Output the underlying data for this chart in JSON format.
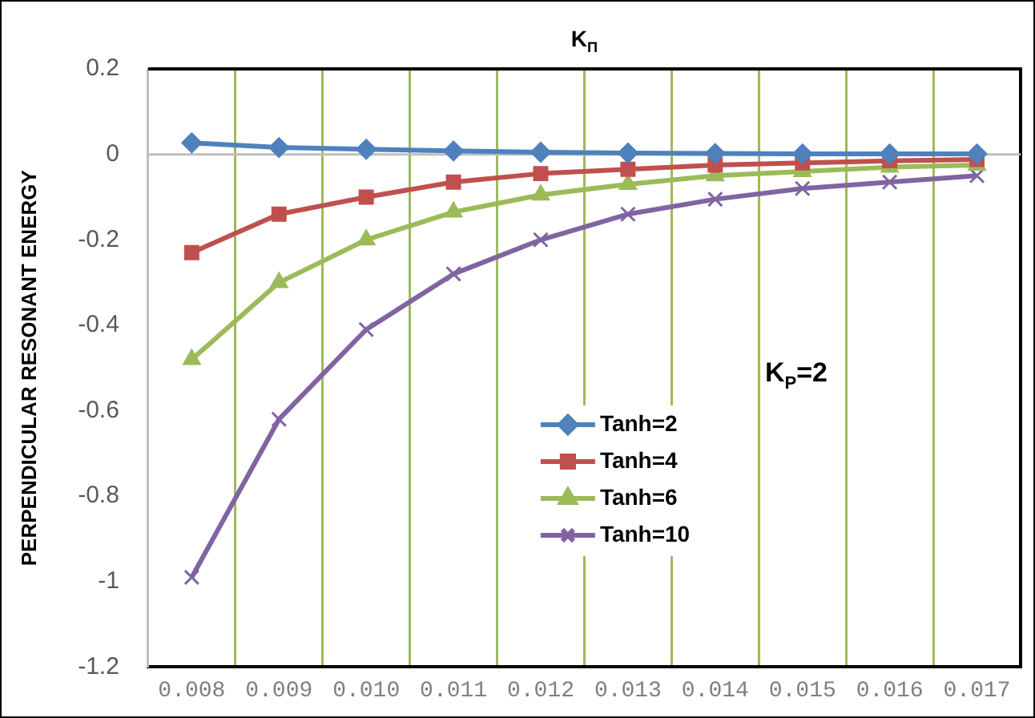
{
  "chart_data": {
    "type": "line",
    "xlabel": "K$_{П}$",
    "ylabel": "PERPENDICULAR RESONANT ENERGY",
    "categories": [
      "0.008",
      "0.009",
      "0.010",
      "0.011",
      "0.012",
      "0.013",
      "0.014",
      "0.015",
      "0.016",
      "0.017"
    ],
    "series": [
      {
        "name": "Tanh=2",
        "color": "#4f81bd",
        "marker": "diamond",
        "values": [
          0.027,
          0.016,
          0.012,
          0.008,
          0.005,
          0.003,
          0.002,
          0.001,
          0.001,
          0.001
        ]
      },
      {
        "name": "Tanh=4",
        "color": "#c0504d",
        "marker": "square",
        "values": [
          -0.23,
          -0.14,
          -0.1,
          -0.065,
          -0.045,
          -0.035,
          -0.025,
          -0.02,
          -0.015,
          -0.012
        ]
      },
      {
        "name": "Tanh=6",
        "color": "#9bbb59",
        "marker": "triangle",
        "values": [
          -0.48,
          -0.3,
          -0.2,
          -0.135,
          -0.095,
          -0.07,
          -0.05,
          -0.04,
          -0.03,
          -0.025
        ]
      },
      {
        "name": "Tanh=10",
        "color": "#8064a2",
        "marker": "cross",
        "values": [
          -0.99,
          -0.62,
          -0.41,
          -0.28,
          -0.2,
          -0.14,
          -0.105,
          -0.08,
          -0.065,
          -0.05
        ]
      }
    ],
    "ylim": [
      -1.2,
      0.2
    ],
    "yticks": [
      -1.2,
      -1,
      -0.8,
      -0.6,
      -0.4,
      -0.2,
      0,
      0.2
    ],
    "grid": "x",
    "legend": "center",
    "line_style": "solid",
    "annotations": [
      "K$_{P}$=2"
    ]
  }
}
